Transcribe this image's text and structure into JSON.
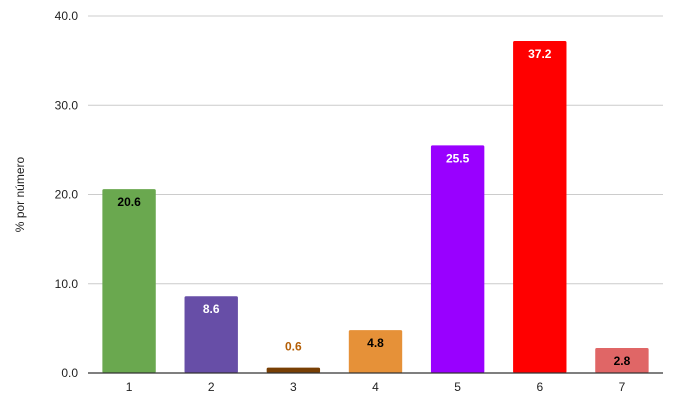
{
  "chart_data": {
    "type": "bar",
    "title": "",
    "xlabel": "",
    "ylabel": "% por número",
    "ylim": [
      0,
      40
    ],
    "yticks": [
      "0.0",
      "10.0",
      "20.0",
      "30.0",
      "40.0"
    ],
    "grid": true,
    "legend": "none",
    "categories": [
      "1",
      "2",
      "3",
      "4",
      "5",
      "6",
      "7"
    ],
    "values": [
      20.6,
      8.6,
      0.6,
      4.8,
      25.5,
      37.2,
      2.8
    ],
    "data_labels": [
      "20.6",
      "8.6",
      "0.6",
      "4.8",
      "25.5",
      "37.2",
      "2.8"
    ],
    "colors": [
      "#6aa84f",
      "#674ea7",
      "#783f04",
      "#e69138",
      "#9900ff",
      "#ff0000",
      "#e06666"
    ],
    "label_colors": [
      "#000000",
      "#ffffff",
      "#b45f06",
      "#000000",
      "#ffffff",
      "#ffffff",
      "#000000"
    ]
  }
}
